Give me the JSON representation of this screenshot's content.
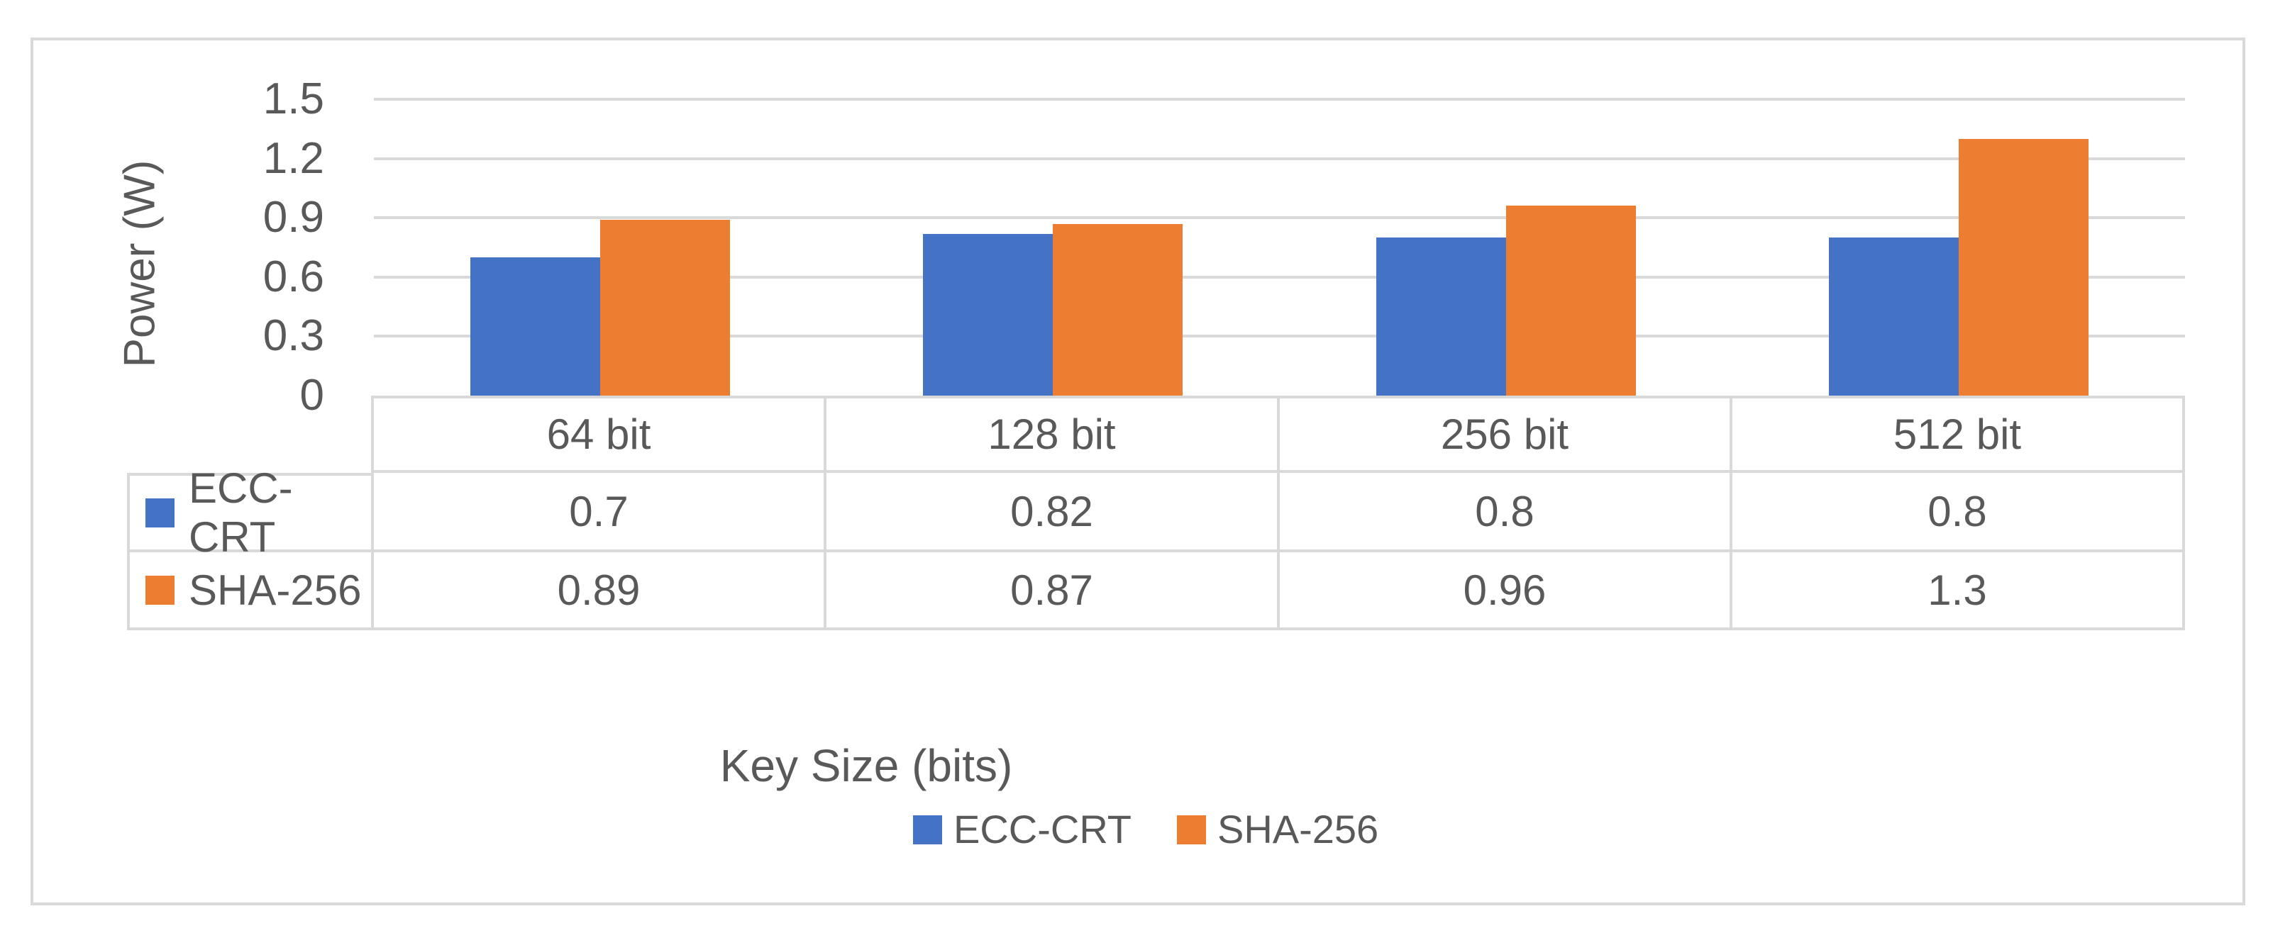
{
  "chart_data": {
    "type": "bar",
    "title": "",
    "categories": [
      "64 bit",
      "128 bit",
      "256 bit",
      "512 bit"
    ],
    "series": [
      {
        "name": "ECC-CRT",
        "color": "#4472C4",
        "values": [
          0.7,
          0.82,
          0.8,
          0.8
        ]
      },
      {
        "name": "SHA-256",
        "color": "#ED7D31",
        "values": [
          0.89,
          0.87,
          0.96,
          1.3
        ]
      }
    ],
    "xlabel": "Key Size (bits)",
    "ylabel": "Power (W)",
    "ylim": [
      0,
      1.5
    ],
    "y_ticks": [
      0,
      0.3,
      0.6,
      0.9,
      1.2,
      1.5
    ],
    "grid": true,
    "legend_position": "bottom",
    "data_table_shown": true,
    "colors": {
      "gridline": "#d9d9d9",
      "border": "#d9d9d9",
      "text": "#595959",
      "background": "#ffffff"
    }
  }
}
